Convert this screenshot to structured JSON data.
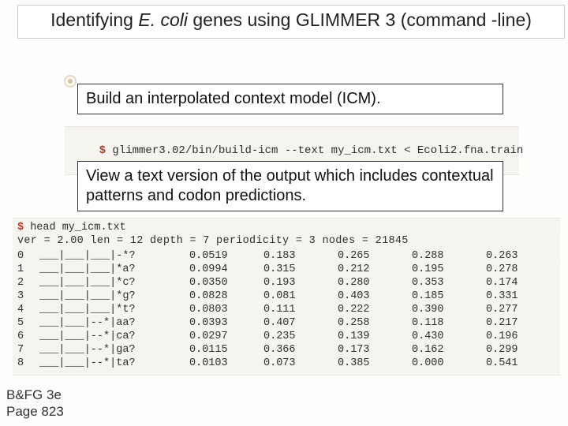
{
  "title": {
    "prefix": "Identifying ",
    "italic": "E. coli",
    "suffix": " genes using GLIMMER 3 (command -line)"
  },
  "desc1": "Build an interpolated context model (ICM).",
  "cmd1": {
    "prompt": "$ ",
    "text": "glimmer3.02/bin/build-icm --text my_icm.txt < Ecoli2.fna.train"
  },
  "desc2": "View a text version of the output which includes contextual patterns and codon predictions.",
  "output": {
    "head_prompt": "$ ",
    "head_cmd": "head my_icm.txt",
    "ver_line": "ver = 2.00 len = 12 depth = 7 periodicity = 3 nodes = 21845",
    "rows": [
      {
        "idx": "0",
        "patt": "___|___|___|-*?",
        "v1": "0.0519",
        "v2": "0.183",
        "v3": "0.265",
        "v4": "0.288",
        "v5": "0.263"
      },
      {
        "idx": "1",
        "patt": "___|___|___|*a?",
        "v1": "0.0994",
        "v2": "0.315",
        "v3": "0.212",
        "v4": "0.195",
        "v5": "0.278"
      },
      {
        "idx": "2",
        "patt": "___|___|___|*c?",
        "v1": "0.0350",
        "v2": "0.193",
        "v3": "0.280",
        "v4": "0.353",
        "v5": "0.174"
      },
      {
        "idx": "3",
        "patt": "___|___|___|*g?",
        "v1": "0.0828",
        "v2": "0.081",
        "v3": "0.403",
        "v4": "0.185",
        "v5": "0.331"
      },
      {
        "idx": "4",
        "patt": "___|___|___|*t?",
        "v1": "0.0803",
        "v2": "0.111",
        "v3": "0.222",
        "v4": "0.390",
        "v5": "0.277"
      },
      {
        "idx": "5",
        "patt": "___|___|--*|aa?",
        "v1": "0.0393",
        "v2": "0.407",
        "v3": "0.258",
        "v4": "0.118",
        "v5": "0.217"
      },
      {
        "idx": "6",
        "patt": "___|___|--*|ca?",
        "v1": "0.0297",
        "v2": "0.235",
        "v3": "0.139",
        "v4": "0.430",
        "v5": "0.196"
      },
      {
        "idx": "7",
        "patt": "___|___|--*|ga?",
        "v1": "0.0115",
        "v2": "0.366",
        "v3": "0.173",
        "v4": "0.162",
        "v5": "0.299"
      },
      {
        "idx": "8",
        "patt": "___|___|--*|ta?",
        "v1": "0.0103",
        "v2": "0.073",
        "v3": "0.385",
        "v4": "0.000",
        "v5": "0.541"
      }
    ]
  },
  "footer": {
    "line1": "B&FG 3e",
    "line2": "Page 823"
  },
  "colors": {
    "prompt": "#b43a2a",
    "strip_bg": "#f6f4ef"
  }
}
